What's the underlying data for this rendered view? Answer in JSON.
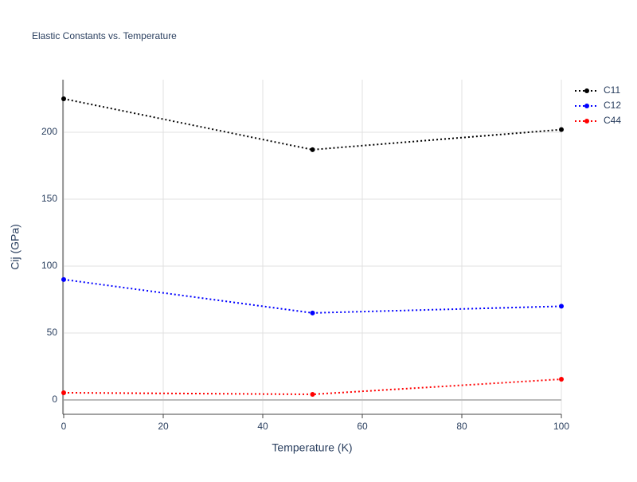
{
  "chart_data": {
    "type": "line",
    "title": "Elastic Constants vs. Temperature",
    "x_label": "Temperature (K)",
    "y_label": "Cij (GPa)",
    "x": [
      0,
      50,
      100
    ],
    "series": [
      {
        "name": "C11",
        "color": "#000000",
        "values": [
          225,
          187,
          202
        ]
      },
      {
        "name": "C12",
        "color": "#0000ff",
        "values": [
          90,
          65,
          70
        ]
      },
      {
        "name": "C44",
        "color": "#ff0000",
        "values": [
          5.4,
          4.2,
          15.5
        ]
      }
    ],
    "xlim": [
      0,
      100
    ],
    "xticks": [
      0,
      20,
      40,
      60,
      80,
      100
    ],
    "ylim": [
      -10.7,
      239.3
    ],
    "yticks": [
      0,
      50,
      100,
      150,
      200
    ],
    "grid": true,
    "legend": "top-right"
  }
}
